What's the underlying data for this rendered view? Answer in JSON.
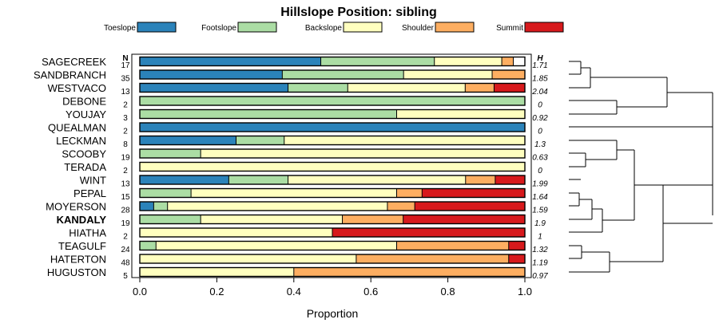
{
  "chart_data": {
    "type": "stacked-bar-horizontal",
    "title": "Hillslope Position: sibling",
    "xlabel": "Proportion",
    "xlim": [
      0,
      1
    ],
    "x_ticks": [
      "0.0",
      "0.2",
      "0.4",
      "0.6",
      "0.8",
      "1.0"
    ],
    "x_tick_values": [
      0,
      0.2,
      0.4,
      0.6,
      0.8,
      1.0
    ],
    "n_header": "N",
    "h_header": "H",
    "highlight": "KANDALY",
    "legend": [
      {
        "name": "Toeslope",
        "color": "#2b83ba"
      },
      {
        "name": "Footslope",
        "color": "#abdda4"
      },
      {
        "name": "Backslope",
        "color": "#ffffbf"
      },
      {
        "name": "Shoulder",
        "color": "#fdae61"
      },
      {
        "name": "Summit",
        "color": "#d7191c"
      }
    ],
    "rows": [
      {
        "label": "SAGECREEK",
        "n": "17",
        "h": "1.71",
        "values": [
          0.47,
          0.295,
          0.175,
          0.03,
          0.0
        ]
      },
      {
        "label": "SANDBRANCH",
        "n": "35",
        "h": "1.85",
        "values": [
          0.37,
          0.315,
          0.23,
          0.085,
          0.0
        ]
      },
      {
        "label": "WESTVACO",
        "n": "13",
        "h": "2.04",
        "values": [
          0.385,
          0.155,
          0.305,
          0.075,
          0.08
        ]
      },
      {
        "label": "DEBONE",
        "n": "2",
        "h": "0",
        "values": [
          0.0,
          1.0,
          0.0,
          0.0,
          0.0
        ]
      },
      {
        "label": "YOUJAY",
        "n": "3",
        "h": "0.92",
        "values": [
          0.0,
          0.667,
          0.333,
          0.0,
          0.0
        ]
      },
      {
        "label": "QUEALMAN",
        "n": "2",
        "h": "0",
        "values": [
          1.0,
          0.0,
          0.0,
          0.0,
          0.0
        ]
      },
      {
        "label": "LECKMAN",
        "n": "8",
        "h": "1.3",
        "values": [
          0.25,
          0.125,
          0.625,
          0.0,
          0.0
        ]
      },
      {
        "label": "SCOOBY",
        "n": "19",
        "h": "0.63",
        "values": [
          0.0,
          0.158,
          0.842,
          0.0,
          0.0
        ]
      },
      {
        "label": "TERADA",
        "n": "2",
        "h": "0",
        "values": [
          0.0,
          0.0,
          1.0,
          0.0,
          0.0
        ]
      },
      {
        "label": "WINT",
        "n": "13",
        "h": "1.99",
        "values": [
          0.231,
          0.154,
          0.461,
          0.077,
          0.077
        ]
      },
      {
        "label": "PEPAL",
        "n": "15",
        "h": "1.64",
        "values": [
          0.0,
          0.133,
          0.534,
          0.066,
          0.267
        ]
      },
      {
        "label": "MOYERSON",
        "n": "28",
        "h": "1.59",
        "values": [
          0.036,
          0.036,
          0.571,
          0.071,
          0.286
        ]
      },
      {
        "label": "KANDALY",
        "n": "19",
        "h": "1.9",
        "values": [
          0.0,
          0.158,
          0.368,
          0.158,
          0.316
        ]
      },
      {
        "label": "HIATHA",
        "n": "2",
        "h": "1",
        "values": [
          0.0,
          0.0,
          0.5,
          0.0,
          0.5
        ]
      },
      {
        "label": "TEAGULF",
        "n": "24",
        "h": "1.32",
        "values": [
          0.0,
          0.042,
          0.625,
          0.291,
          0.042
        ]
      },
      {
        "label": "HATERTON",
        "n": "48",
        "h": "1.19",
        "values": [
          0.0,
          0.0,
          0.562,
          0.396,
          0.042
        ]
      },
      {
        "label": "HUGUSTON",
        "n": "5",
        "h": "0.97",
        "values": [
          0.0,
          0.0,
          0.4,
          0.6,
          0.0
        ]
      }
    ]
  }
}
